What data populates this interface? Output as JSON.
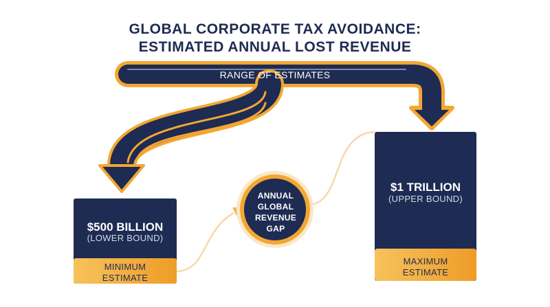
{
  "title": {
    "line1": "GLOBAL CORPORATE TAX AVOIDANCE:",
    "line2": "ESTIMATED ANNUAL LOST REVENUE"
  },
  "range_label": "RANGE OF ESTIMATES",
  "lower": {
    "value": "$500 BILLION",
    "sublabel": "(LOWER BOUND)",
    "footer": [
      "MINIMUM",
      "ESTIMATE"
    ]
  },
  "upper": {
    "value": "$1 TRILLION",
    "sublabel": "(UPPER BOUND)",
    "footer": [
      "MAXIMUM",
      "ESTIMATE"
    ]
  },
  "center": {
    "lines": [
      "ANNUAL",
      "GLOBAL",
      "REVENUE",
      "GAP"
    ]
  },
  "colors": {
    "navy": "#1e2b52",
    "gold": "#f2a733",
    "gold_light": "#f7c868",
    "connector": "#f7d9a6",
    "subtext": "#d5dbea"
  }
}
